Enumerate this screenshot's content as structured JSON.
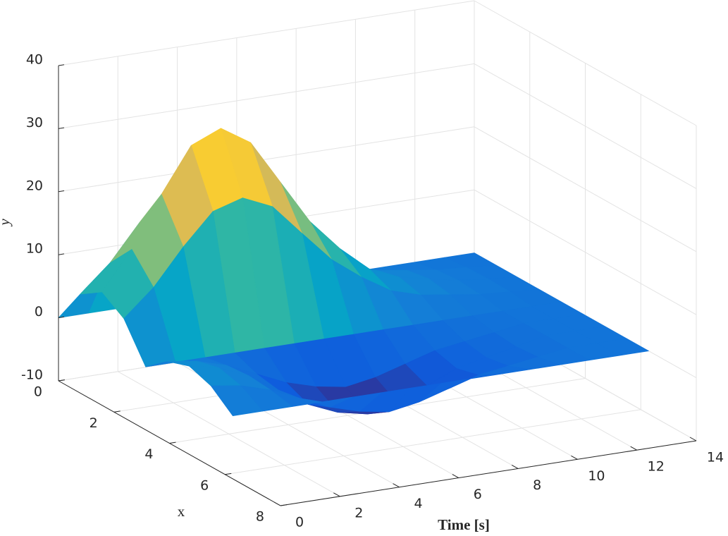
{
  "chart_data": {
    "type": "surface",
    "xlabel": "x",
    "tlabel": "Time [s]",
    "zlabel": "y",
    "x": [
      0,
      0.785,
      1.571,
      2.356,
      3.142,
      3.927,
      4.712,
      5.498,
      6.283
    ],
    "t": [
      0,
      1,
      2,
      3,
      4,
      5,
      6,
      7,
      8,
      9,
      10,
      11,
      12,
      13,
      14
    ],
    "z": [
      [
        0,
        5.7,
        8,
        5.7,
        0,
        2.8,
        4,
        2.8,
        0
      ],
      [
        0,
        9.9,
        14,
        9.9,
        0,
        2.1,
        3,
        2.1,
        0
      ],
      [
        0,
        15.6,
        22,
        15.6,
        0,
        0.7,
        1,
        0.7,
        0
      ],
      [
        0,
        20.5,
        29,
        20.5,
        0,
        -1.4,
        -2,
        -1.4,
        0
      ],
      [
        0,
        21.9,
        31,
        21.9,
        0,
        -3.5,
        -5,
        -3.5,
        0
      ],
      [
        0,
        19.8,
        28,
        19.8,
        0,
        -4.9,
        -7,
        -4.9,
        0
      ],
      [
        0,
        14.8,
        21,
        14.8,
        0,
        -5.7,
        -8,
        -5.7,
        0
      ],
      [
        0,
        9.9,
        14,
        9.9,
        0,
        -4.9,
        -7,
        -4.9,
        0
      ],
      [
        0,
        6.4,
        9,
        6.4,
        0,
        -3.5,
        -5,
        -3.5,
        0
      ],
      [
        0,
        3.5,
        5,
        3.5,
        0,
        -2.1,
        -3,
        -2.1,
        0
      ],
      [
        0,
        2.1,
        3,
        2.1,
        0,
        -1.4,
        -2,
        -1.4,
        0
      ],
      [
        0,
        1.4,
        2,
        1.4,
        0,
        -0.7,
        -1,
        -0.7,
        0
      ],
      [
        0,
        0.7,
        1,
        0.7,
        0,
        0,
        0,
        0,
        0
      ],
      [
        0,
        0.4,
        0.5,
        0.4,
        0,
        0,
        0,
        0,
        0
      ],
      [
        0,
        0,
        0,
        0,
        0,
        0,
        0,
        0,
        0
      ]
    ],
    "xlim": [
      0,
      8
    ],
    "xticks": [
      0,
      2,
      4,
      6,
      8
    ],
    "tlim": [
      0,
      14
    ],
    "tticks": [
      0,
      2,
      4,
      6,
      8,
      10,
      12,
      14
    ],
    "zlim": [
      -10,
      40
    ],
    "zticks": [
      -10,
      0,
      10,
      20,
      30,
      40
    ],
    "colormap": [
      "#352a87",
      "#0f5cdd",
      "#1481d6",
      "#06a7c6",
      "#38b99e",
      "#92bf73",
      "#d9ba56",
      "#fcce2e",
      "#f9fb0e"
    ],
    "grid": true
  }
}
